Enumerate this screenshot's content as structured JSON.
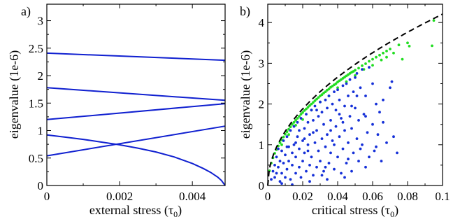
{
  "chart_data": [
    {
      "panel_label": "a)",
      "type": "line",
      "xlabel": "external stress (τ0)",
      "ylabel": "eigenvalue (1e-6)",
      "xlim": [
        0,
        0.0049
      ],
      "ylim": [
        0,
        3.3
      ],
      "xticks": [
        0,
        0.002,
        0.004
      ],
      "xtick_labels": [
        "0",
        "0.002",
        "0.004"
      ],
      "yticks": [
        0,
        0.5,
        1,
        1.5,
        2,
        2.5,
        3
      ],
      "ytick_labels": [
        "0",
        "0.5",
        "1",
        "1.5",
        "2",
        "2.5",
        "3"
      ],
      "color": "#1020d0",
      "series": [
        {
          "x": [
            0,
            0.0049
          ],
          "y": [
            2.41,
            2.28
          ]
        },
        {
          "x": [
            0,
            0.0049
          ],
          "y": [
            1.78,
            1.55
          ]
        },
        {
          "x": [
            0,
            0.0049
          ],
          "y": [
            1.2,
            1.49
          ]
        },
        {
          "x": [
            0,
            0.0049
          ],
          "y": [
            0.54,
            1.08
          ]
        },
        {
          "x": [
            0,
            0.0005,
            0.001,
            0.0015,
            0.002,
            0.0025,
            0.003,
            0.0035,
            0.004,
            0.0043,
            0.0045,
            0.0047,
            0.0048,
            0.0049
          ],
          "y": [
            0.92,
            0.88,
            0.84,
            0.79,
            0.74,
            0.68,
            0.61,
            0.52,
            0.4,
            0.31,
            0.24,
            0.15,
            0.09,
            0.0
          ]
        }
      ]
    },
    {
      "panel_label": "b)",
      "type": "scatter",
      "xlabel": "critical stress (τ0)",
      "ylabel": "eigenvalue (1e-6)",
      "xlim": [
        0,
        0.1
      ],
      "ylim": [
        0,
        4.45
      ],
      "xticks": [
        0,
        0.02,
        0.04,
        0.06,
        0.08,
        0.1
      ],
      "xtick_labels": [
        "0",
        "0.02",
        "0.04",
        "0.06",
        "0.08",
        "0.1"
      ],
      "yticks": [
        0,
        1,
        2,
        3,
        4
      ],
      "ytick_labels": [
        "0",
        "1",
        "2",
        "3",
        "4"
      ],
      "curve": {
        "style": "dashed",
        "color": "#000000",
        "equation": "y = 13.3 * sqrt(x)"
      },
      "series": [
        {
          "color": "#22dd22",
          "points": [
            [
              0.001,
              0.36
            ],
            [
              0.002,
              0.55
            ],
            [
              0.003,
              0.68
            ],
            [
              0.004,
              0.79
            ],
            [
              0.005,
              0.88
            ],
            [
              0.006,
              0.97
            ],
            [
              0.007,
              1.05
            ],
            [
              0.008,
              1.12
            ],
            [
              0.009,
              1.19
            ],
            [
              0.01,
              1.26
            ],
            [
              0.011,
              1.32
            ],
            [
              0.012,
              1.38
            ],
            [
              0.013,
              1.44
            ],
            [
              0.014,
              1.5
            ],
            [
              0.015,
              1.55
            ],
            [
              0.016,
              1.6
            ],
            [
              0.017,
              1.65
            ],
            [
              0.018,
              1.7
            ],
            [
              0.019,
              1.75
            ],
            [
              0.02,
              1.79
            ],
            [
              0.021,
              1.84
            ],
            [
              0.022,
              1.88
            ],
            [
              0.023,
              1.92
            ],
            [
              0.024,
              1.96
            ],
            [
              0.025,
              2.0
            ],
            [
              0.026,
              2.04
            ],
            [
              0.027,
              2.08
            ],
            [
              0.028,
              2.12
            ],
            [
              0.029,
              2.16
            ],
            [
              0.03,
              2.2
            ],
            [
              0.031,
              2.23
            ],
            [
              0.032,
              2.27
            ],
            [
              0.033,
              2.3
            ],
            [
              0.034,
              2.34
            ],
            [
              0.035,
              2.37
            ],
            [
              0.036,
              2.41
            ],
            [
              0.037,
              2.44
            ],
            [
              0.038,
              2.47
            ],
            [
              0.039,
              2.5
            ],
            [
              0.04,
              2.54
            ],
            [
              0.041,
              2.57
            ],
            [
              0.042,
              2.6
            ],
            [
              0.043,
              2.63
            ],
            [
              0.044,
              2.66
            ],
            [
              0.045,
              2.69
            ],
            [
              0.046,
              2.72
            ],
            [
              0.047,
              2.75
            ],
            [
              0.048,
              2.78
            ],
            [
              0.049,
              2.8
            ],
            [
              0.05,
              2.83
            ],
            [
              0.052,
              2.88
            ],
            [
              0.054,
              2.94
            ],
            [
              0.056,
              2.99
            ],
            [
              0.058,
              3.05
            ],
            [
              0.06,
              3.1
            ],
            [
              0.062,
              3.15
            ],
            [
              0.064,
              3.2
            ],
            [
              0.066,
              3.25
            ],
            [
              0.068,
              3.3
            ],
            [
              0.07,
              3.35
            ],
            [
              0.075,
              3.45
            ],
            [
              0.077,
              3.1
            ],
            [
              0.08,
              3.5
            ],
            [
              0.081,
              3.42
            ],
            [
              0.094,
              3.43
            ],
            [
              0.095,
              4.05
            ],
            [
              0.008,
              1.0
            ],
            [
              0.012,
              1.25
            ],
            [
              0.016,
              1.48
            ],
            [
              0.02,
              1.62
            ],
            [
              0.025,
              1.85
            ],
            [
              0.03,
              2.05
            ],
            [
              0.035,
              2.2
            ],
            [
              0.04,
              2.4
            ],
            [
              0.045,
              2.55
            ],
            [
              0.05,
              2.7
            ],
            [
              0.055,
              2.85
            ],
            [
              0.06,
              2.95
            ],
            [
              0.065,
              3.08
            ],
            [
              0.068,
              3.15
            ],
            [
              0.072,
              3.25
            ]
          ]
        },
        {
          "color": "#1530d8",
          "points": [
            [
              0.002,
              0.15
            ],
            [
              0.003,
              0.35
            ],
            [
              0.004,
              0.5
            ],
            [
              0.004,
              0.2
            ],
            [
              0.005,
              0.7
            ],
            [
              0.005,
              0.3
            ],
            [
              0.006,
              0.9
            ],
            [
              0.006,
              0.45
            ],
            [
              0.007,
              0.1
            ],
            [
              0.007,
              0.6
            ],
            [
              0.008,
              0.85
            ],
            [
              0.008,
              0.3
            ],
            [
              0.009,
              1.1
            ],
            [
              0.009,
              0.55
            ],
            [
              0.01,
              0.75
            ],
            [
              0.01,
              0.2
            ],
            [
              0.011,
              1.2
            ],
            [
              0.011,
              0.4
            ],
            [
              0.012,
              0.95
            ],
            [
              0.012,
              0.6
            ],
            [
              0.013,
              1.35
            ],
            [
              0.013,
              0.15
            ],
            [
              0.014,
              0.8
            ],
            [
              0.014,
              0.5
            ],
            [
              0.015,
              1.45
            ],
            [
              0.015,
              1.0
            ],
            [
              0.016,
              0.3
            ],
            [
              0.016,
              0.7
            ],
            [
              0.017,
              1.2
            ],
            [
              0.017,
              1.55
            ],
            [
              0.018,
              0.45
            ],
            [
              0.018,
              0.9
            ],
            [
              0.019,
              1.65
            ],
            [
              0.019,
              0.2
            ],
            [
              0.02,
              1.1
            ],
            [
              0.02,
              0.6
            ],
            [
              0.021,
              1.4
            ],
            [
              0.021,
              0.8
            ],
            [
              0.022,
              1.75
            ],
            [
              0.022,
              0.35
            ],
            [
              0.023,
              1.0
            ],
            [
              0.023,
              1.55
            ],
            [
              0.024,
              0.5
            ],
            [
              0.024,
              1.25
            ],
            [
              0.025,
              1.85
            ],
            [
              0.025,
              0.7
            ],
            [
              0.026,
              0.25
            ],
            [
              0.026,
              1.6
            ],
            [
              0.027,
              1.05
            ],
            [
              0.027,
              1.95
            ],
            [
              0.028,
              0.45
            ],
            [
              0.028,
              1.35
            ],
            [
              0.029,
              0.85
            ],
            [
              0.029,
              1.7
            ],
            [
              0.03,
              2.05
            ],
            [
              0.03,
              0.6
            ],
            [
              0.031,
              1.15
            ],
            [
              0.031,
              1.8
            ],
            [
              0.032,
              0.35
            ],
            [
              0.032,
              1.5
            ],
            [
              0.033,
              2.1
            ],
            [
              0.033,
              0.95
            ],
            [
              0.034,
              1.25
            ],
            [
              0.034,
              1.9
            ],
            [
              0.035,
              0.55
            ],
            [
              0.035,
              2.2
            ],
            [
              0.036,
              1.6
            ],
            [
              0.036,
              0.8
            ],
            [
              0.037,
              2.0
            ],
            [
              0.037,
              1.1
            ],
            [
              0.038,
              2.3
            ],
            [
              0.038,
              0.4
            ],
            [
              0.039,
              1.45
            ],
            [
              0.039,
              1.85
            ],
            [
              0.04,
              2.35
            ],
            [
              0.04,
              0.7
            ],
            [
              0.041,
              1.2
            ],
            [
              0.041,
              2.1
            ],
            [
              0.042,
              1.65
            ],
            [
              0.042,
              0.3
            ],
            [
              0.043,
              2.45
            ],
            [
              0.043,
              0.9
            ],
            [
              0.044,
              1.95
            ],
            [
              0.044,
              1.35
            ],
            [
              0.045,
              2.5
            ],
            [
              0.045,
              0.55
            ],
            [
              0.046,
              1.05
            ],
            [
              0.046,
              2.2
            ],
            [
              0.047,
              1.7
            ],
            [
              0.047,
              2.6
            ],
            [
              0.048,
              1.4
            ],
            [
              0.048,
              0.35
            ],
            [
              0.049,
              2.3
            ],
            [
              0.049,
              0.8
            ],
            [
              0.05,
              1.9
            ],
            [
              0.05,
              2.65
            ],
            [
              0.051,
              1.15
            ],
            [
              0.051,
              2.75
            ],
            [
              0.052,
              0.6
            ],
            [
              0.052,
              1.6
            ],
            [
              0.053,
              2.4
            ],
            [
              0.054,
              1.0
            ],
            [
              0.054,
              2.85
            ],
            [
              0.055,
              1.75
            ],
            [
              0.056,
              0.45
            ],
            [
              0.056,
              2.2
            ],
            [
              0.057,
              1.3
            ],
            [
              0.058,
              2.9
            ],
            [
              0.058,
              0.7
            ],
            [
              0.06,
              1.5
            ],
            [
              0.06,
              2.5
            ],
            [
              0.062,
              0.95
            ],
            [
              0.062,
              2.0
            ],
            [
              0.063,
              1.25
            ],
            [
              0.064,
              1.8
            ],
            [
              0.065,
              0.6
            ],
            [
              0.066,
              1.55
            ],
            [
              0.068,
              1.05
            ],
            [
              0.07,
              2.4
            ],
            [
              0.072,
              1.2
            ],
            [
              0.074,
              0.8
            ],
            [
              0.008,
              0.05
            ],
            [
              0.014,
              0.02
            ],
            [
              0.024,
              0.1
            ],
            [
              0.034,
              0.15
            ],
            [
              0.044,
              0.2
            ],
            [
              0.018,
              1.35
            ],
            [
              0.028,
              1.85
            ],
            [
              0.038,
              1.0
            ],
            [
              0.048,
              1.95
            ],
            [
              0.023,
              0.85
            ],
            [
              0.033,
              0.45
            ],
            [
              0.043,
              1.55
            ],
            [
              0.053,
              0.9
            ],
            [
              0.011,
              0.95
            ],
            [
              0.021,
              1.15
            ],
            [
              0.031,
              0.25
            ],
            [
              0.041,
              1.75
            ],
            [
              0.051,
              2.2
            ],
            [
              0.061,
              0.85
            ],
            [
              0.071,
              2.55
            ],
            [
              0.016,
              1.05
            ],
            [
              0.026,
              1.3
            ],
            [
              0.036,
              1.35
            ],
            [
              0.046,
              0.65
            ],
            [
              0.056,
              1.7
            ],
            [
              0.066,
              2.1
            ]
          ]
        }
      ]
    }
  ]
}
